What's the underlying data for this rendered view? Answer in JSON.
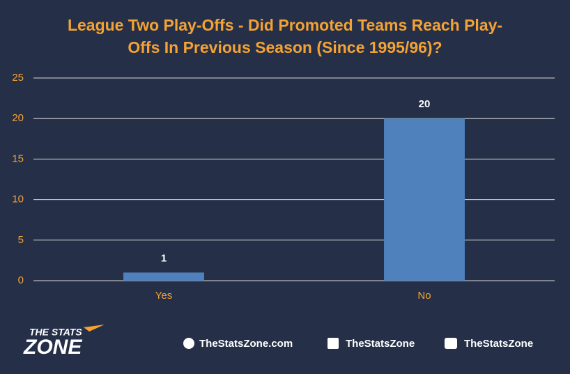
{
  "chart_data": {
    "type": "bar",
    "title": "League Two Play-Offs - Did Promoted Teams Reach Play-Offs In Previous Season (Since 1995/96)?",
    "categories": [
      "Yes",
      "No"
    ],
    "values": [
      1,
      20
    ],
    "color": "#4f81bd",
    "ylim": [
      0,
      25
    ],
    "yticks": [
      0,
      5,
      10,
      15,
      20,
      25
    ],
    "grid": true
  },
  "footer": {
    "logo_top": "THE STATS",
    "logo_bottom": "ZONE",
    "website": "TheStatsZone.com",
    "facebook": "TheStatsZone",
    "twitter": "TheStatsZone"
  }
}
